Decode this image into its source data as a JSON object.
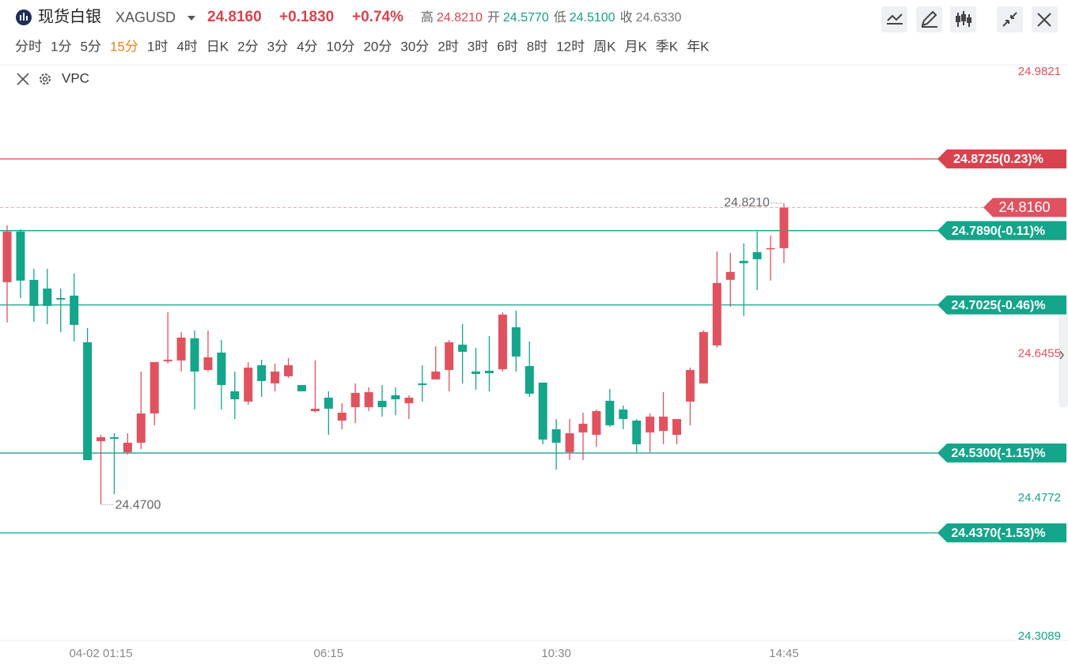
{
  "header": {
    "name": "现货白银",
    "symbol": "XAGUSD",
    "price": "24.8160",
    "change": "+0.1830",
    "change_pct": "+0.74%",
    "stats": [
      {
        "label": "高",
        "value": "24.8210",
        "color": "#d9434f"
      },
      {
        "label": "开",
        "value": "24.5770",
        "color": "#12a183"
      },
      {
        "label": "低",
        "value": "24.5100",
        "color": "#12a183"
      },
      {
        "label": "收",
        "value": "24.6330",
        "color": "#777777"
      }
    ],
    "timeframes": [
      "分时",
      "1分",
      "5分",
      "15分",
      "1时",
      "4时",
      "日K",
      "2分",
      "3分",
      "4分",
      "10分",
      "20分",
      "30分",
      "2时",
      "3时",
      "6时",
      "8时",
      "12时",
      "周K",
      "月K",
      "季K",
      "年K"
    ],
    "active_index": 3
  },
  "indicator": "VPC",
  "chart_data": {
    "type": "candlestick",
    "up_color": "#e0525f",
    "down_color": "#14a58b",
    "categories": [
      null,
      null,
      null,
      null,
      null,
      null,
      null,
      "04-02 01:15",
      null,
      null,
      null,
      null,
      null,
      null,
      null,
      null,
      null,
      null,
      null,
      null,
      null,
      null,
      null,
      null,
      "06:15",
      null,
      null,
      null,
      null,
      null,
      null,
      null,
      null,
      null,
      null,
      null,
      null,
      null,
      null,
      null,
      null,
      "10:30",
      null,
      null,
      null,
      null,
      null,
      null,
      null,
      null,
      null,
      null,
      null,
      null,
      null,
      null,
      null,
      null,
      "14:45"
    ],
    "open": [
      24.729,
      24.7879,
      24.7317,
      24.7216,
      24.7105,
      24.7133,
      24.659,
      24.5438,
      24.5484,
      24.5309,
      24.542,
      24.5761,
      24.6369,
      24.6378,
      24.6636,
      24.6267,
      24.647,
      24.6019,
      24.5899,
      24.6323,
      24.6111,
      24.6194,
      24.6092,
      24.5788,
      24.5945,
      24.5678,
      24.5834,
      24.5834,
      24.5908,
      24.5973,
      24.588,
      24.6111,
      24.6157,
      24.6267,
      24.6562,
      24.6249,
      24.6258,
      24.6276,
      24.6765,
      24.6313,
      24.612,
      24.5577,
      24.5309,
      24.554,
      24.5512,
      24.5908,
      24.5807,
      24.5678,
      24.554,
      24.5558,
      24.5512,
      24.5899,
      24.6111,
      24.6553,
      24.7317,
      24.7538,
      24.764,
      24.7676,
      24.7686
    ],
    "high": [
      24.7953,
      24.7907,
      24.7446,
      24.7446,
      24.7216,
      24.7391,
      24.6755,
      24.5512,
      24.553,
      24.553,
      24.6249,
      24.6359,
      24.694,
      24.6709,
      24.6728,
      24.6728,
      24.6617,
      24.6249,
      24.6359,
      24.6387,
      24.6341,
      24.6405,
      24.6092,
      24.6378,
      24.6019,
      24.588,
      24.6111,
      24.6065,
      24.6092,
      24.6065,
      24.5973,
      24.6323,
      24.6544,
      24.6617,
      24.6801,
      24.6525,
      24.6663,
      24.694,
      24.6958,
      24.6599,
      24.612,
      24.5696,
      24.5696,
      24.577,
      24.5807,
      24.6046,
      24.5853,
      24.5696,
      24.5761,
      24.6009,
      24.5696,
      24.6295,
      24.6728,
      24.7649,
      24.763,
      24.7741,
      24.7879,
      24.7833,
      24.821
    ],
    "low": [
      24.682,
      24.7105,
      24.6829,
      24.6801,
      24.6709,
      24.6599,
      24.5217,
      24.47,
      24.4821,
      24.5282,
      24.5346,
      24.5623,
      24.6341,
      24.6249,
      24.5807,
      24.6249,
      24.5807,
      24.5696,
      24.5862,
      24.5954,
      24.6019,
      24.6175,
      24.6019,
      24.577,
      24.5512,
      24.5577,
      24.565,
      24.5788,
      24.5724,
      24.5742,
      24.5696,
      24.5899,
      24.6157,
      24.6019,
      24.6111,
      24.6037,
      24.6019,
      24.6249,
      24.6249,
      24.5954,
      24.5402,
      24.5107,
      24.5217,
      24.5217,
      24.5374,
      24.5604,
      24.5577,
      24.5309,
      24.5309,
      24.5402,
      24.5402,
      24.5623,
      24.6111,
      24.6525,
      24.7004,
      24.6894,
      24.7197,
      24.7308,
      24.7511
    ],
    "close": [
      24.7879,
      24.7308,
      24.7013,
      24.7013,
      24.7087,
      24.6792,
      24.5217,
      24.5484,
      24.5466,
      24.542,
      24.5761,
      24.6359,
      24.6387,
      24.6645,
      24.6249,
      24.6415,
      24.6092,
      24.5926,
      24.6295,
      24.6138,
      24.6249,
      24.6323,
      24.6019,
      24.5816,
      24.5816,
      24.577,
      24.6,
      24.6009,
      24.5834,
      24.5926,
      24.5945,
      24.6092,
      24.6249,
      24.659,
      24.6479,
      24.6221,
      24.623,
      24.6912,
      24.6424,
      24.5991,
      24.5457,
      24.542,
      24.553,
      24.5641,
      24.5788,
      24.5623,
      24.5696,
      24.5402,
      24.5724,
      24.5724,
      24.5696,
      24.6267,
      24.6709,
      24.728,
      24.7409,
      24.7511,
      24.7557,
      24.7686,
      24.816
    ],
    "ylim": [
      24.3089,
      24.9821
    ],
    "yticks": [
      24.9821,
      24.6455,
      24.4772,
      24.3089
    ],
    "ytick_colors": [
      "#e0525f",
      "#e0525f",
      "#14a58b",
      "#14a58b"
    ],
    "levels": [
      {
        "value": 24.8725,
        "label": "24.8725(0.23)%",
        "color": "#d9434f"
      },
      {
        "value": 24.789,
        "label": "24.7890(-0.11)%",
        "color": "#14a58b"
      },
      {
        "value": 24.7025,
        "label": "24.7025(-0.46)%",
        "color": "#14a58b"
      },
      {
        "value": 24.53,
        "label": "24.5300(-1.15)%",
        "color": "#14a58b"
      },
      {
        "value": 24.437,
        "label": "24.4370(-1.53)%",
        "color": "#14a58b"
      }
    ],
    "price_line": {
      "value": 24.816,
      "label": "24.8160"
    },
    "max_label": {
      "value": 24.821,
      "label": "24.8210"
    },
    "min_label": {
      "value": 24.47,
      "label": "24.4700"
    }
  }
}
